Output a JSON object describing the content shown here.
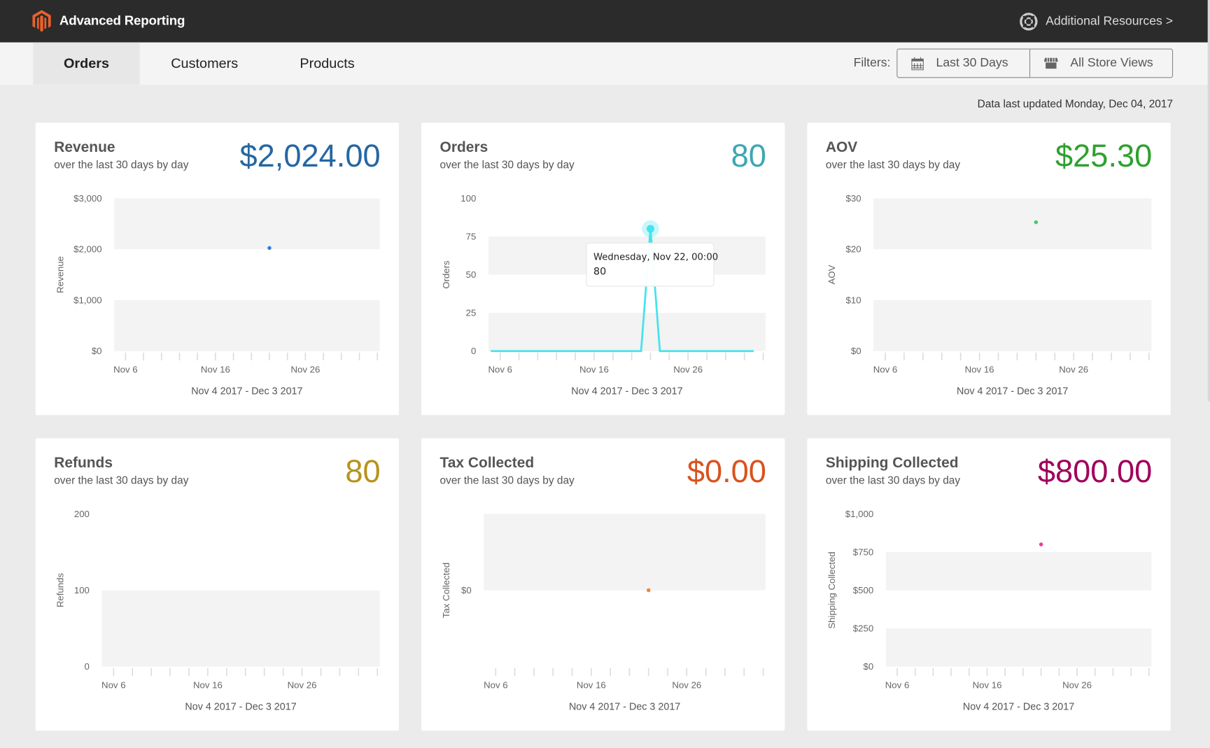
{
  "header": {
    "app_title": "Advanced Reporting",
    "resources_label": "Additional Resources >",
    "logo_icon": "magento-logo",
    "resources_icon": "lifebuoy-icon",
    "logo_color": "#e8612c"
  },
  "nav": {
    "tabs": [
      {
        "label": "Orders",
        "active": true
      },
      {
        "label": "Customers",
        "active": false
      },
      {
        "label": "Products",
        "active": false
      }
    ],
    "filters_label": "Filters:",
    "date_filter": "Last 30 Days",
    "date_icon": "calendar-icon",
    "store_filter": "All Store Views",
    "store_icon": "store-icon"
  },
  "updated": "Data last updated Monday, Dec 04, 2017",
  "chart_data": [
    {
      "id": "revenue",
      "type": "scatter",
      "title": "Revenue",
      "subtitle": "over the last 30 days by day",
      "total": "$2,024.00",
      "total_color": "#2566a3",
      "mark_color": "#2e7de0",
      "ylabel": "Revenue",
      "ylim": [
        0,
        3000
      ],
      "yticks": [
        0,
        1000,
        2000,
        3000
      ],
      "ytick_labels": [
        "$0",
        "$1,000",
        "$2,000",
        "$3,000"
      ],
      "xtick_labels": [
        "Nov 6",
        "Nov 16",
        "Nov 26"
      ],
      "range_label": "Nov 4 2017 - Dec 3 2017",
      "points": [
        {
          "x": "Nov 22",
          "y": 2024
        }
      ]
    },
    {
      "id": "orders",
      "type": "line",
      "title": "Orders",
      "subtitle": "over the last 30 days by day",
      "total": "80",
      "total_color": "#3ba8b2",
      "mark_color": "#45e3ee",
      "ylabel": "Orders",
      "ylim": [
        0,
        100
      ],
      "yticks": [
        0,
        25,
        50,
        75,
        100
      ],
      "ytick_labels": [
        "0",
        "25",
        "50",
        "75",
        "100"
      ],
      "xtick_labels": [
        "Nov 6",
        "Nov 16",
        "Nov 26"
      ],
      "range_label": "Nov 4 2017 - Dec 3 2017",
      "x": [
        "Nov 5",
        "Nov 6",
        "Nov 7",
        "Nov 8",
        "Nov 9",
        "Nov 10",
        "Nov 11",
        "Nov 12",
        "Nov 13",
        "Nov 14",
        "Nov 15",
        "Nov 16",
        "Nov 17",
        "Nov 18",
        "Nov 19",
        "Nov 20",
        "Nov 21",
        "Nov 22",
        "Nov 23",
        "Nov 24",
        "Nov 25",
        "Nov 26",
        "Nov 27",
        "Nov 28",
        "Nov 29",
        "Nov 30",
        "Dec 1",
        "Dec 2",
        "Dec 3"
      ],
      "values": [
        0,
        0,
        0,
        0,
        0,
        0,
        0,
        0,
        0,
        0,
        0,
        0,
        0,
        0,
        0,
        0,
        0,
        80,
        0,
        0,
        0,
        0,
        0,
        0,
        0,
        0,
        0,
        0,
        0
      ],
      "tooltip": {
        "title": "Wednesday, Nov 22, 00:00",
        "value": "80",
        "x": "Nov 22"
      }
    },
    {
      "id": "aov",
      "type": "scatter",
      "title": "AOV",
      "subtitle": "over the last 30 days by day",
      "total": "$25.30",
      "total_color": "#2ea12e",
      "mark_color": "#45c86a",
      "ylabel": "AOV",
      "ylim": [
        0,
        30
      ],
      "yticks": [
        0,
        10,
        20,
        30
      ],
      "ytick_labels": [
        "$0",
        "$10",
        "$20",
        "$30"
      ],
      "xtick_labels": [
        "Nov 6",
        "Nov 16",
        "Nov 26"
      ],
      "range_label": "Nov 4 2017 - Dec 3 2017",
      "points": [
        {
          "x": "Nov 22",
          "y": 25.3
        }
      ]
    },
    {
      "id": "refunds",
      "type": "scatter",
      "title": "Refunds",
      "subtitle": "over the last 30 days by day",
      "total": "80",
      "total_color": "#b8921c",
      "mark_color": "#b8921c",
      "ylabel": "Refunds",
      "ylim": [
        0,
        200
      ],
      "yticks": [
        0,
        100,
        200
      ],
      "ytick_labels": [
        "0",
        "100",
        "200"
      ],
      "xtick_labels": [
        "Nov 6",
        "Nov 16",
        "Nov 26"
      ],
      "range_label": "Nov 4 2017 - Dec 3 2017",
      "points": []
    },
    {
      "id": "tax",
      "type": "scatter",
      "title": "Tax Collected",
      "subtitle": "over the last 30 days by day",
      "total": "$0.00",
      "total_color": "#d9521e",
      "mark_color": "#f0843c",
      "ylabel": "Tax Collected",
      "ylim": [
        -1,
        1
      ],
      "yticks": [
        0
      ],
      "ytick_labels": [
        "$0"
      ],
      "xtick_labels": [
        "Nov 6",
        "Nov 16",
        "Nov 26"
      ],
      "range_label": "Nov 4 2017 - Dec 3 2017",
      "points": [
        {
          "x": "Nov 22",
          "y": 0
        }
      ]
    },
    {
      "id": "shipping",
      "type": "scatter",
      "title": "Shipping Collected",
      "subtitle": "over the last 30 days by day",
      "total": "$800.00",
      "total_color": "#a0005a",
      "mark_color": "#ec3f95",
      "ylabel": "Shipping Collected",
      "ylim": [
        0,
        1000
      ],
      "yticks": [
        0,
        250,
        500,
        750,
        1000
      ],
      "ytick_labels": [
        "$0",
        "$250",
        "$500",
        "$750",
        "$1,000"
      ],
      "xtick_labels": [
        "Nov 6",
        "Nov 16",
        "Nov 26"
      ],
      "range_label": "Nov 4 2017 - Dec 3 2017",
      "points": [
        {
          "x": "Nov 22",
          "y": 800
        }
      ]
    }
  ]
}
